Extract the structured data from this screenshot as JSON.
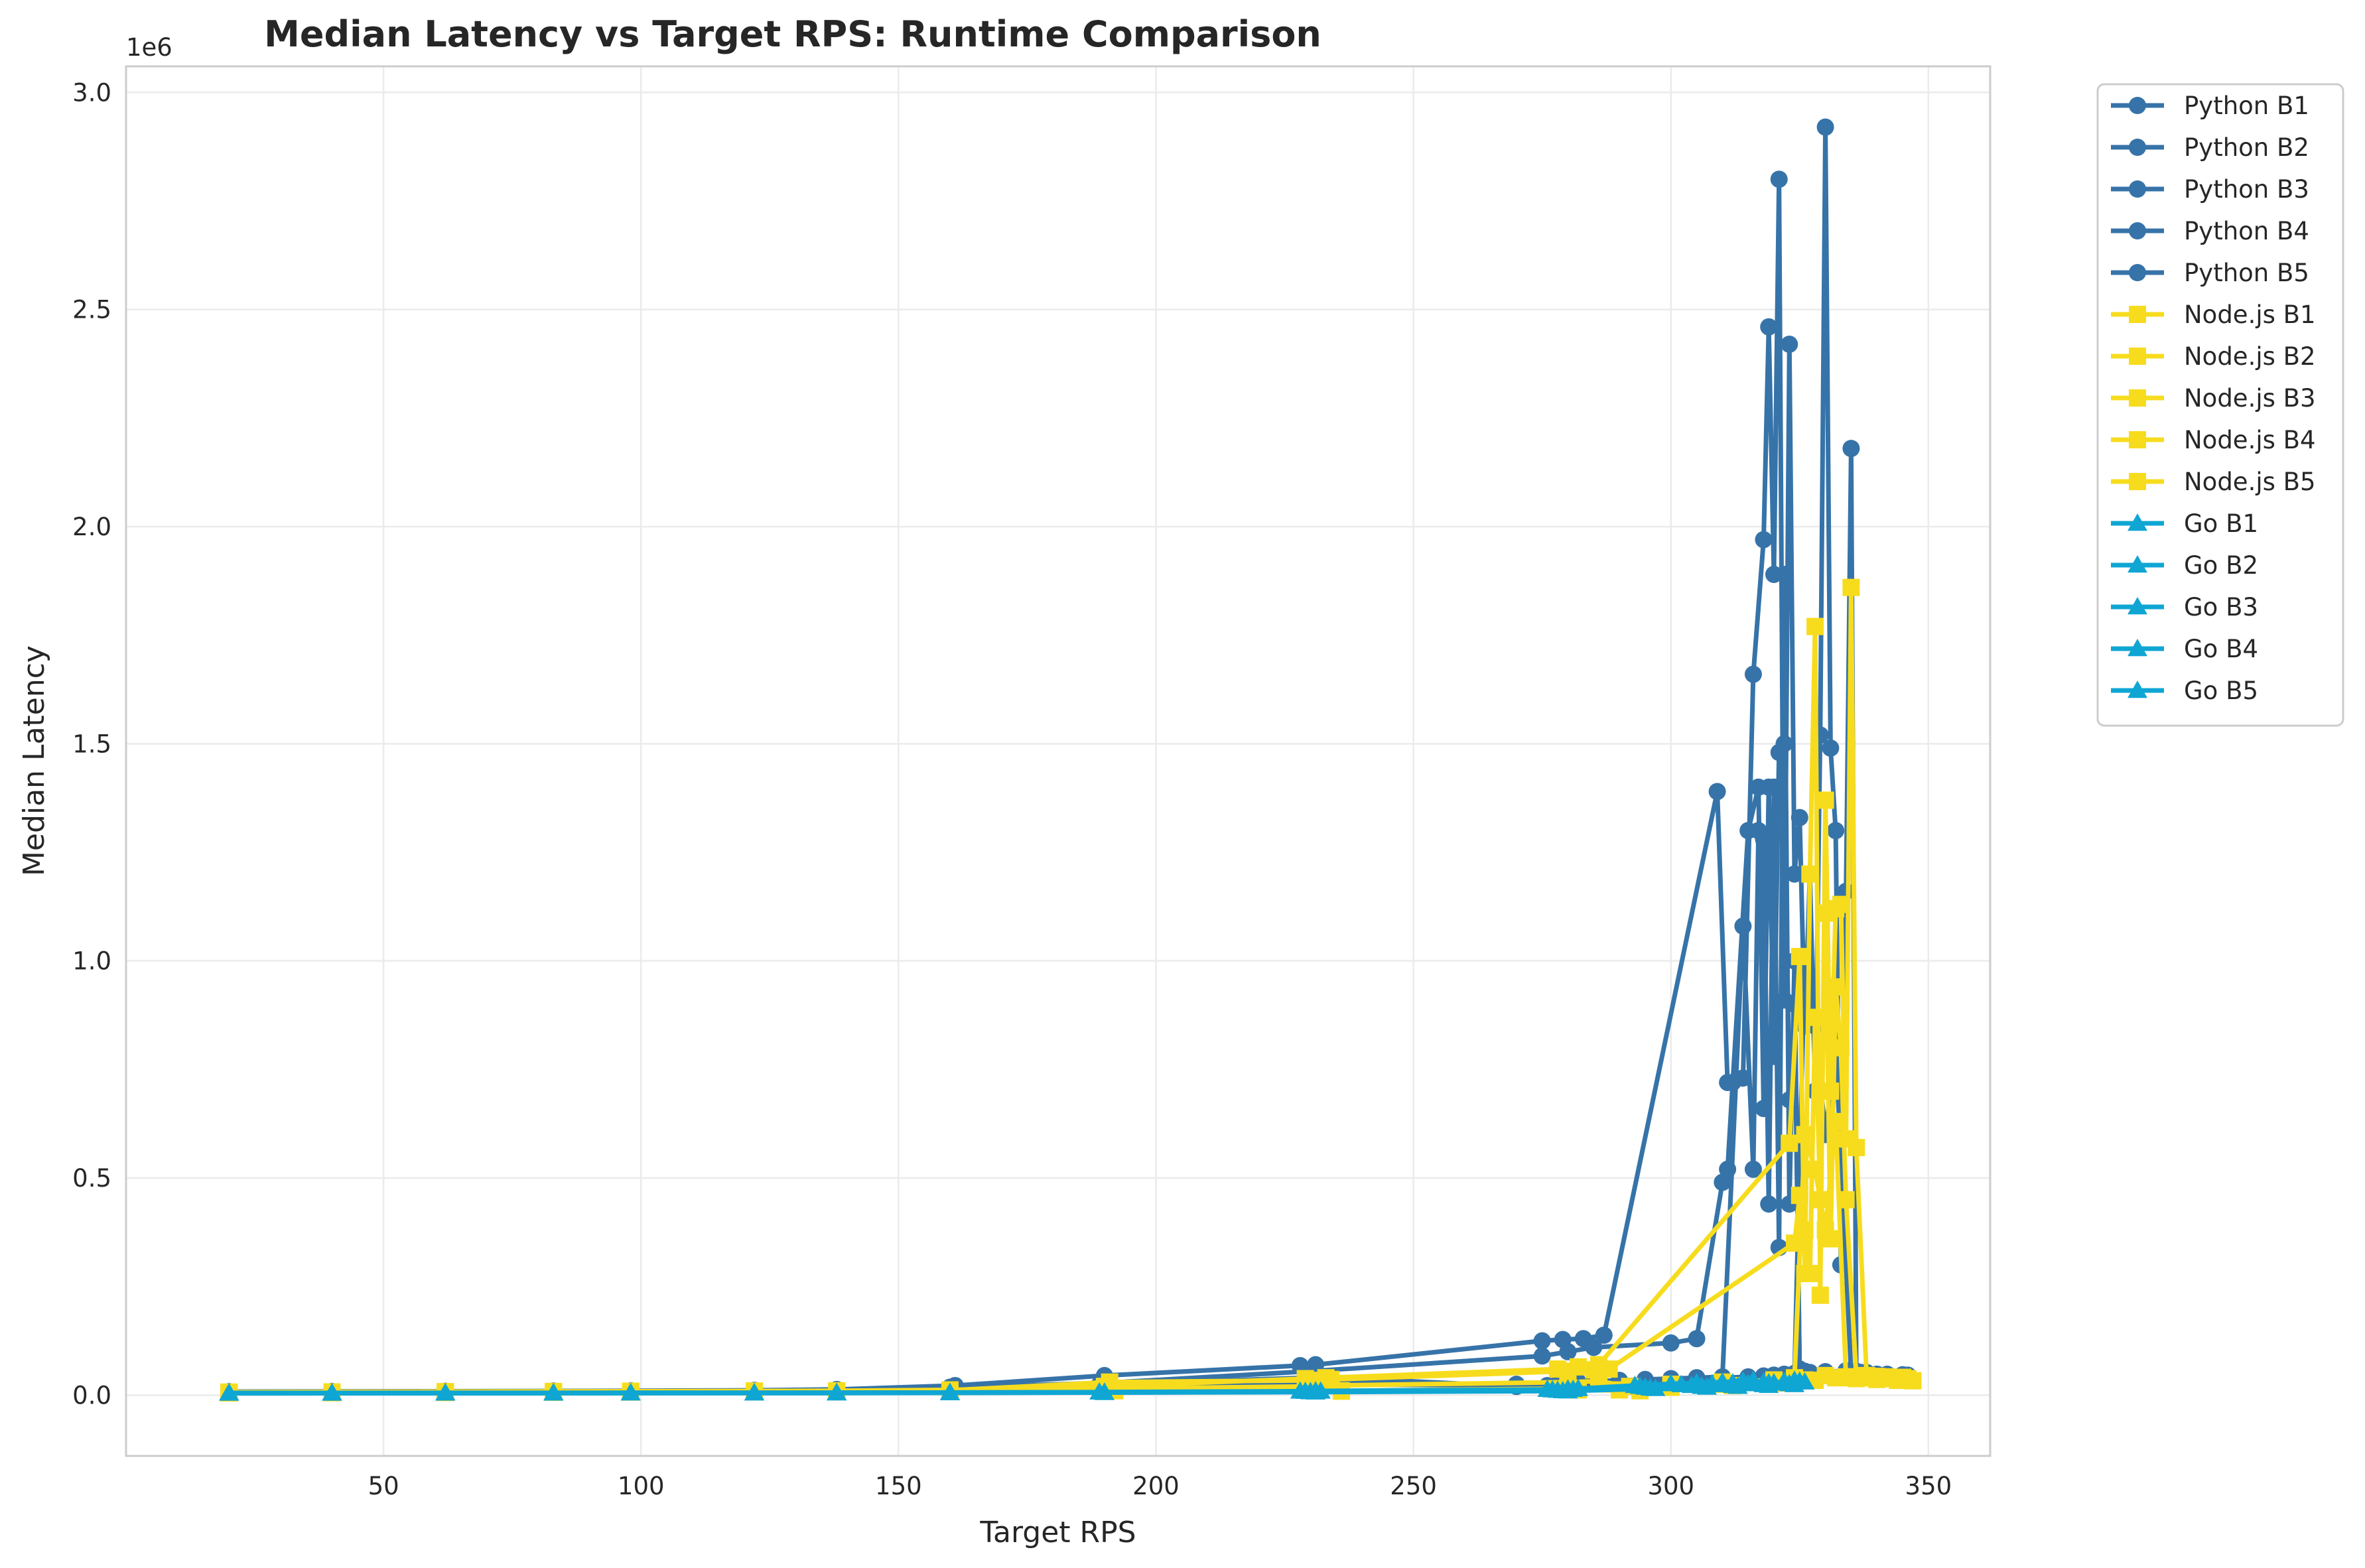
{
  "chart_data": {
    "type": "line",
    "title": "Median Latency vs Target RPS: Runtime Comparison",
    "xlabel": "Target RPS",
    "ylabel": "Median Latency",
    "y_offset_label": "1e6",
    "xlim": [
      0,
      362
    ],
    "ylim": [
      -140000,
      3060000
    ],
    "xticks": [
      50,
      100,
      150,
      200,
      250,
      300,
      350
    ],
    "yticks": [
      0,
      500000,
      1000000,
      1500000,
      2000000,
      2500000,
      3000000
    ],
    "ytick_labels": [
      "0.0",
      "0.5",
      "1.0",
      "1.5",
      "2.0",
      "2.5",
      "3.0"
    ],
    "grid": true,
    "legend_position": "outside-right-top",
    "colors": {
      "Python": "#3673a8",
      "Node.js": "#f7dc1e",
      "Go": "#0fa6d4"
    },
    "series": [
      {
        "name": "Python B1",
        "marker": "circle",
        "x": [
          20,
          40,
          62,
          83,
          98,
          122,
          138,
          161,
          190,
          228,
          231,
          275,
          279,
          283,
          287,
          309,
          311,
          314,
          316,
          318,
          319,
          320,
          321,
          322,
          323,
          324,
          325,
          326,
          327,
          328,
          329,
          330,
          331,
          332,
          333,
          334,
          335,
          336,
          337,
          338,
          340,
          342,
          345
        ],
        "y": [
          8000,
          8500,
          9000,
          9500,
          10000,
          11000,
          13000,
          22000,
          45000,
          68000,
          70000,
          125000,
          128000,
          130000,
          138000,
          1390000,
          720000,
          730000,
          1660000,
          1970000,
          2460000,
          1890000,
          2800000,
          910000,
          2420000,
          1200000,
          1330000,
          850000,
          1200000,
          700000,
          1520000,
          2920000,
          1490000,
          1300000,
          300000,
          1160000,
          2180000,
          55000,
          52000,
          50000,
          48000,
          46000,
          47000
        ]
      },
      {
        "name": "Python B2",
        "marker": "circle",
        "x": [
          20,
          40,
          62,
          83,
          98,
          122,
          138,
          160,
          189,
          229,
          232,
          270,
          276,
          278,
          280,
          282,
          285,
          290,
          295,
          300,
          305,
          310,
          314,
          316,
          317,
          318,
          319,
          320,
          321,
          322,
          323,
          324,
          325,
          330,
          335,
          340
        ],
        "y": [
          7000,
          7500,
          8000,
          8500,
          9000,
          10000,
          11000,
          16000,
          24000,
          40000,
          42000,
          20000,
          22000,
          25000,
          28000,
          30000,
          32000,
          34000,
          36000,
          38000,
          40000,
          42000,
          1080000,
          520000,
          1300000,
          1280000,
          440000,
          1400000,
          340000,
          1890000,
          440000,
          1000000,
          40000,
          45000,
          43000,
          42000
        ]
      },
      {
        "name": "Python B3",
        "marker": "circle",
        "x": [
          20,
          40,
          62,
          83,
          98,
          122,
          138,
          160,
          190,
          230,
          275,
          280,
          285,
          300,
          305,
          310,
          311,
          312,
          315,
          317,
          318,
          319,
          320,
          321,
          322,
          323,
          324,
          325,
          326,
          327,
          330,
          335,
          342
        ],
        "y": [
          7500,
          8000,
          8500,
          9000,
          9500,
          10500,
          12000,
          18000,
          28000,
          55000,
          90000,
          100000,
          110000,
          120000,
          130000,
          490000,
          520000,
          720000,
          1300000,
          1400000,
          660000,
          1400000,
          780000,
          1480000,
          1500000,
          680000,
          900000,
          60000,
          55000,
          52000,
          50000,
          48000,
          46000
        ]
      },
      {
        "name": "Python B4",
        "marker": "circle",
        "x": [
          20,
          40,
          62,
          83,
          98,
          122,
          138,
          160,
          190,
          230,
          270,
          280,
          290,
          300,
          310,
          315,
          318,
          320,
          322,
          324,
          326,
          328,
          330,
          332,
          335,
          340,
          345
        ],
        "y": [
          7000,
          7500,
          8000,
          8500,
          9000,
          10000,
          11000,
          14000,
          20000,
          30000,
          25000,
          28000,
          32000,
          36000,
          40000,
          42000,
          44000,
          46000,
          48000,
          50000,
          1010000,
          850000,
          600000,
          800000,
          50000,
          48000,
          46000
        ]
      },
      {
        "name": "Python B5",
        "marker": "circle",
        "x": [
          20,
          40,
          62,
          83,
          98,
          122,
          138,
          160,
          190,
          230,
          270,
          280,
          290,
          300,
          310,
          318,
          322,
          326,
          330,
          334,
          338,
          342,
          346
        ],
        "y": [
          6500,
          7000,
          7500,
          8000,
          8500,
          9500,
          10500,
          13000,
          18000,
          25000,
          22000,
          26000,
          30000,
          34000,
          38000,
          42000,
          46000,
          50000,
          54000,
          56000,
          52000,
          48000,
          46000
        ]
      },
      {
        "name": "Node.js B1",
        "marker": "square",
        "x": [
          20,
          40,
          62,
          83,
          98,
          122,
          138,
          160,
          190,
          229,
          233,
          278,
          282,
          286,
          323,
          325,
          326,
          327,
          328,
          329,
          330,
          331,
          332,
          333,
          334,
          335,
          336,
          338,
          340,
          342,
          345
        ],
        "y": [
          7000,
          7500,
          8000,
          8500,
          9000,
          9500,
          10000,
          12000,
          20000,
          38000,
          40000,
          60000,
          65000,
          70000,
          580000,
          1010000,
          280000,
          1200000,
          1770000,
          230000,
          1370000,
          700000,
          1120000,
          1130000,
          590000,
          1860000,
          570000,
          45000,
          43000,
          42000,
          41000
        ]
      },
      {
        "name": "Node.js B2",
        "marker": "square",
        "x": [
          20,
          40,
          62,
          83,
          98,
          122,
          138,
          160,
          191,
          230,
          234,
          280,
          285,
          288,
          324,
          325,
          326,
          327,
          328,
          329,
          330,
          331,
          332,
          333,
          334,
          336,
          340,
          344
        ],
        "y": [
          6500,
          7000,
          7500,
          8000,
          8500,
          9000,
          9500,
          11000,
          30000,
          34000,
          36000,
          55000,
          58000,
          60000,
          350000,
          460000,
          380000,
          280000,
          870000,
          450000,
          1110000,
          360000,
          940000,
          800000,
          450000,
          42000,
          40000,
          39000
        ]
      },
      {
        "name": "Node.js B3",
        "marker": "square",
        "x": [
          20,
          40,
          62,
          83,
          98,
          122,
          138,
          160,
          190,
          230,
          234,
          280,
          286,
          292,
          300,
          310,
          320,
          324,
          326,
          328,
          330,
          332,
          334,
          336,
          340,
          346
        ],
        "y": [
          6000,
          6500,
          7000,
          7500,
          8000,
          8500,
          9000,
          10000,
          15000,
          20000,
          22000,
          30000,
          32000,
          20000,
          25000,
          30000,
          35000,
          40000,
          600000,
          520000,
          380000,
          630000,
          40000,
          42000,
          40000,
          38000
        ]
      },
      {
        "name": "Node.js B4",
        "marker": "square",
        "x": [
          20,
          40,
          62,
          83,
          98,
          122,
          138,
          160,
          192,
          236,
          280,
          290,
          300,
          310,
          320,
          326,
          330,
          334,
          338,
          342,
          346
        ],
        "y": [
          5500,
          6000,
          6500,
          7000,
          7500,
          8000,
          8500,
          9500,
          12000,
          10000,
          15000,
          12000,
          20000,
          25000,
          30000,
          35000,
          45000,
          42000,
          40000,
          38000,
          36000
        ]
      },
      {
        "name": "Node.js B5",
        "marker": "square",
        "x": [
          20,
          40,
          62,
          83,
          98,
          122,
          138,
          160,
          192,
          236,
          282,
          294,
          300,
          312,
          322,
          328,
          332,
          336,
          340,
          344,
          347
        ],
        "y": [
          5000,
          5500,
          6000,
          6500,
          7000,
          7500,
          8000,
          9000,
          10000,
          9000,
          12000,
          10000,
          18000,
          22000,
          28000,
          34000,
          40000,
          38000,
          36000,
          34000,
          33000
        ]
      },
      {
        "name": "Go B1",
        "marker": "triangle",
        "x": [
          20,
          40,
          62,
          83,
          98,
          122,
          138,
          160,
          189,
          228,
          231,
          276,
          280,
          282,
          293,
          300,
          305,
          310,
          314,
          316,
          318,
          320,
          322,
          324,
          326
        ],
        "y": [
          5000,
          5100,
          5200,
          5300,
          5400,
          5500,
          5600,
          6000,
          7000,
          9000,
          9500,
          13000,
          14000,
          15000,
          22000,
          26000,
          28000,
          30000,
          32000,
          34000,
          30000,
          28000,
          32000,
          34000,
          30000
        ]
      },
      {
        "name": "Go B2",
        "marker": "triangle",
        "x": [
          20,
          40,
          62,
          83,
          98,
          122,
          138,
          160,
          190,
          229,
          232,
          277,
          281,
          294,
          302,
          308,
          312,
          316,
          319,
          322,
          325
        ],
        "y": [
          4800,
          4900,
          5000,
          5100,
          5200,
          5300,
          5400,
          5800,
          6500,
          8500,
          9000,
          12000,
          13000,
          20000,
          24000,
          26000,
          28000,
          30000,
          28000,
          30000,
          32000
        ]
      },
      {
        "name": "Go B3",
        "marker": "triangle",
        "x": [
          20,
          40,
          62,
          83,
          98,
          122,
          138,
          160,
          190,
          230,
          278,
          295,
          304,
          310,
          315,
          320,
          324
        ],
        "y": [
          4600,
          4700,
          4800,
          4900,
          5000,
          5100,
          5200,
          5600,
          6200,
          8000,
          11000,
          18000,
          22000,
          24000,
          26000,
          28000,
          30000
        ]
      },
      {
        "name": "Go B4",
        "marker": "triangle",
        "x": [
          20,
          40,
          62,
          83,
          98,
          122,
          138,
          160,
          190,
          230,
          279,
          296,
          306,
          312,
          318,
          323
        ],
        "y": [
          4400,
          4500,
          4600,
          4700,
          4800,
          4900,
          5000,
          5400,
          6000,
          7500,
          10000,
          16000,
          20000,
          22000,
          24000,
          26000
        ]
      },
      {
        "name": "Go B5",
        "marker": "triangle",
        "x": [
          20,
          40,
          62,
          83,
          98,
          122,
          138,
          160,
          190,
          231,
          280,
          297,
          307,
          313,
          319,
          324
        ],
        "y": [
          4200,
          4300,
          4400,
          4500,
          4600,
          4700,
          4800,
          5200,
          5800,
          7000,
          9500,
          15000,
          18000,
          20000,
          22000,
          24000
        ]
      }
    ]
  }
}
